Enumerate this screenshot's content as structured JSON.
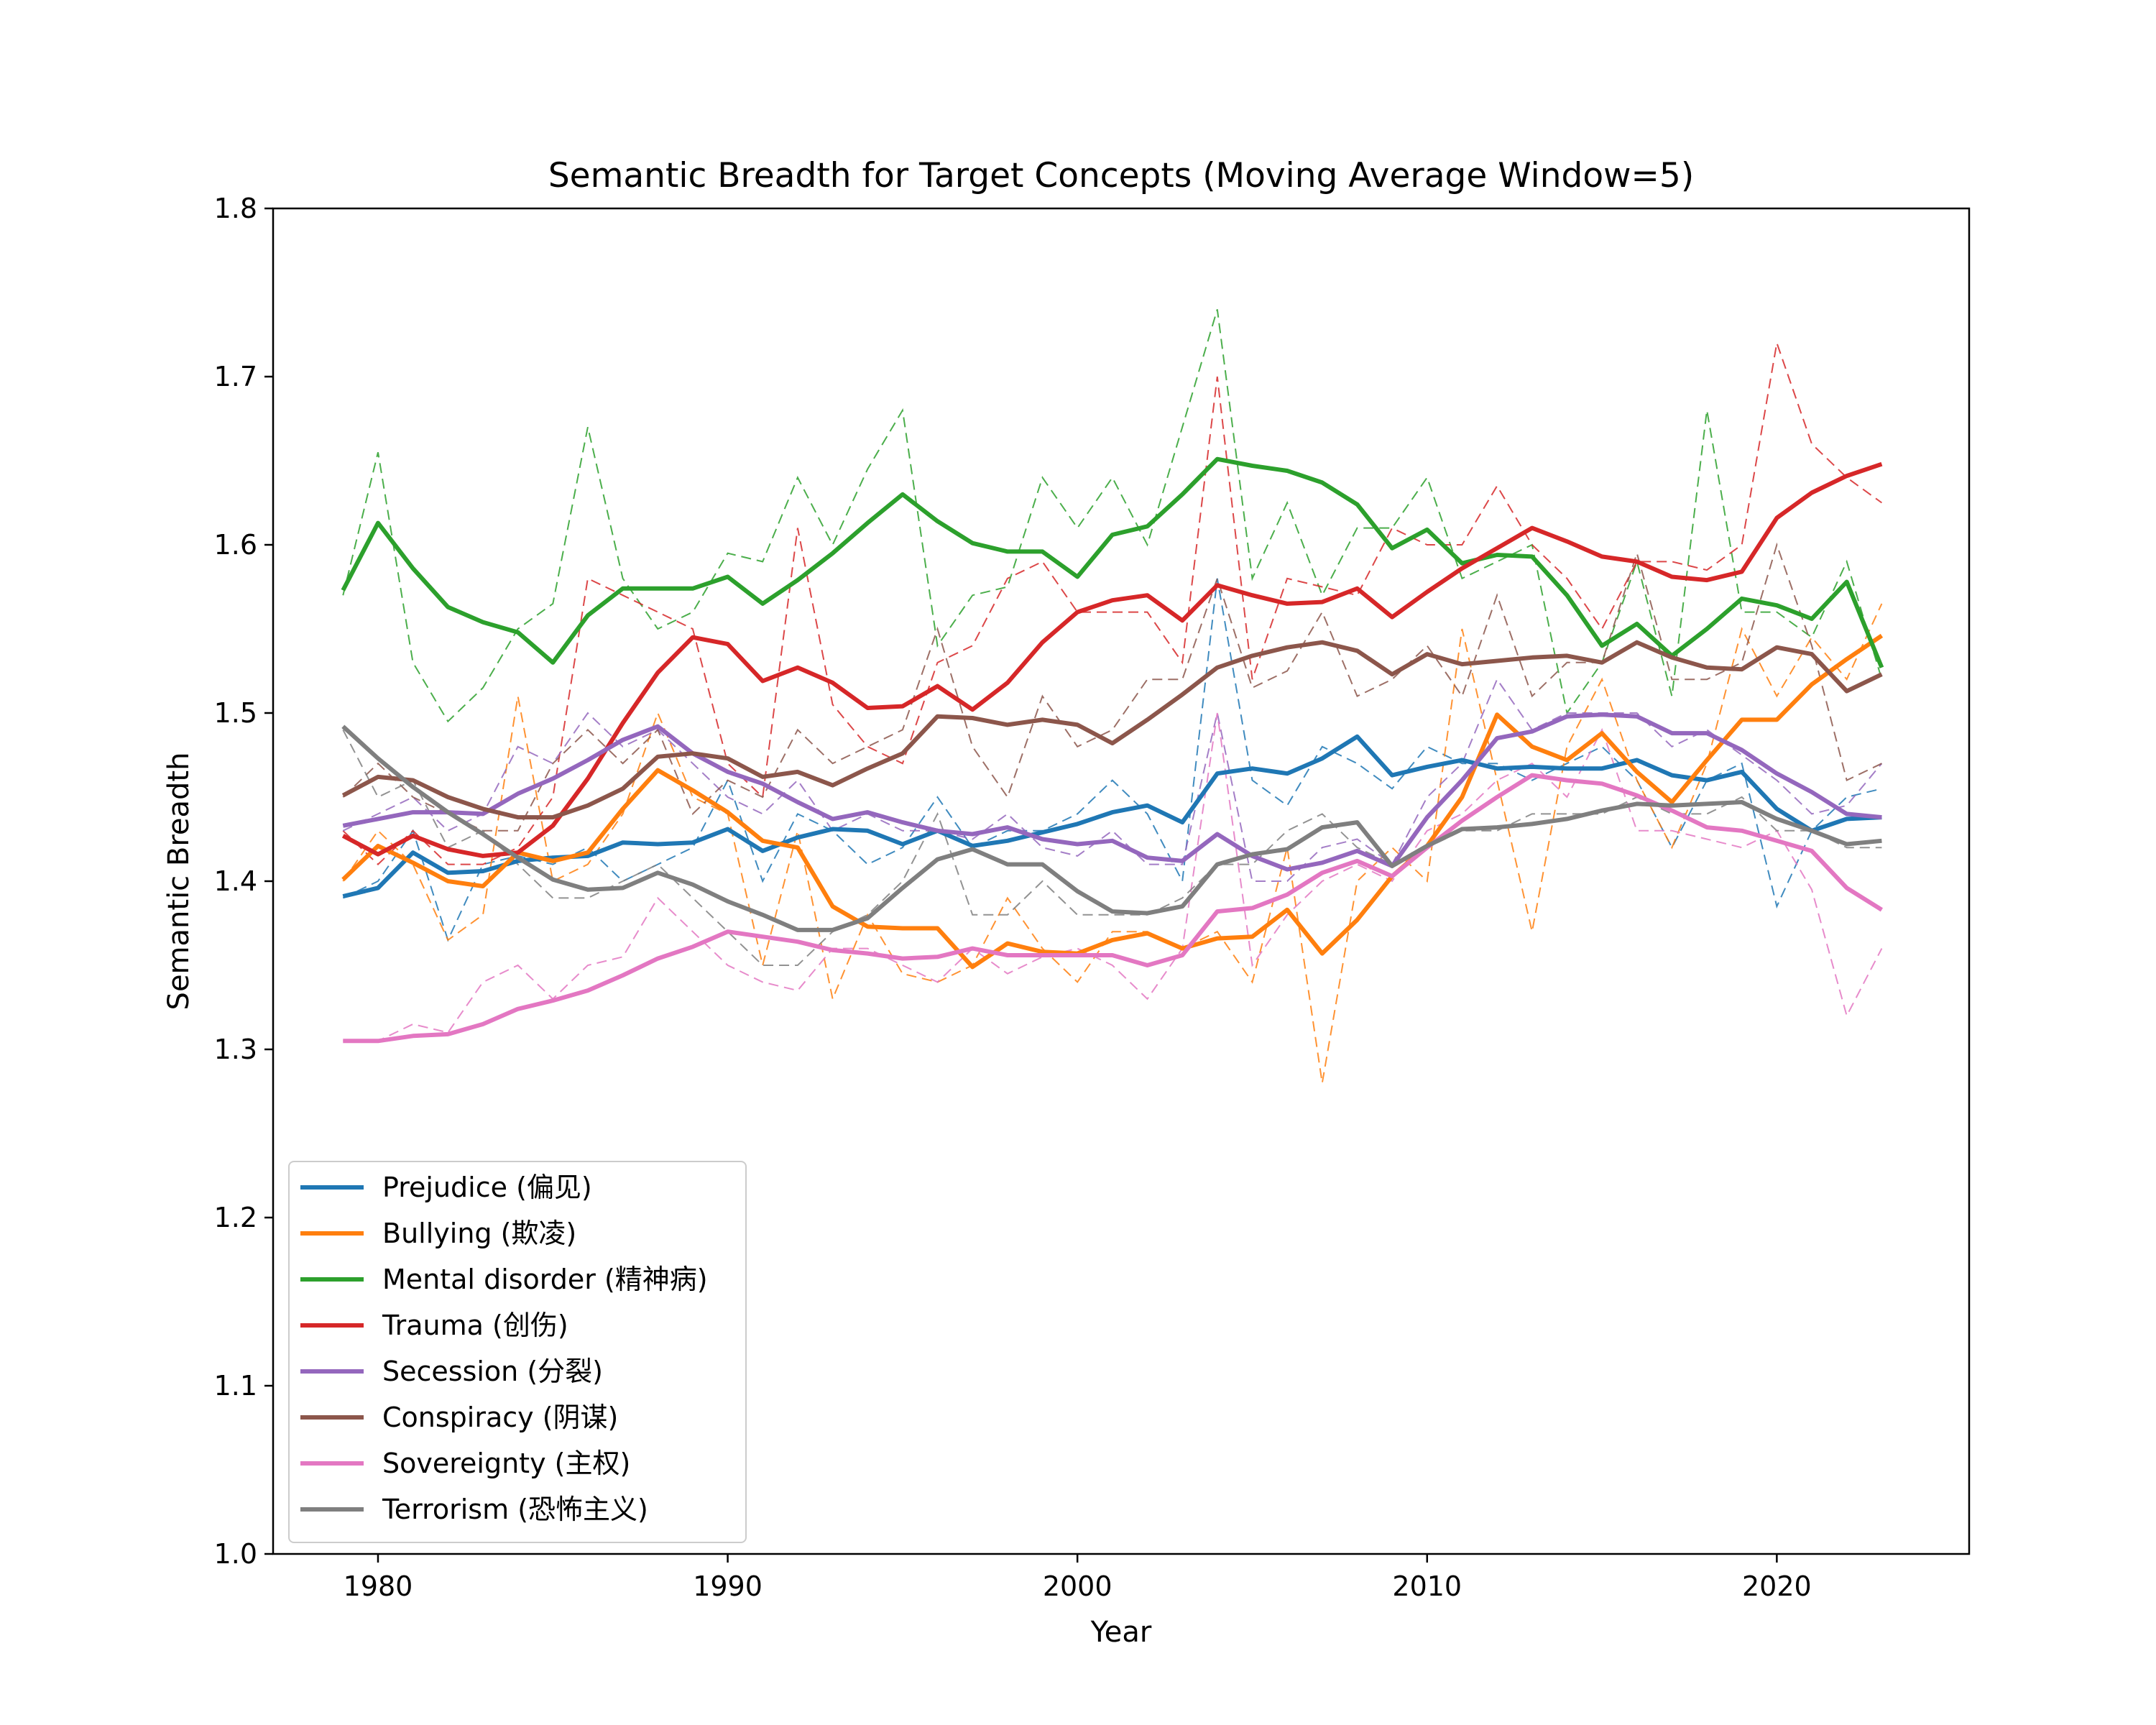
{
  "chart_data": {
    "type": "line",
    "title": "Semantic Breadth for Target Concepts (Moving Average Window=5)",
    "xlabel": "Year",
    "ylabel": "Semantic Breadth",
    "xlim": [
      1977,
      2025.5
    ],
    "ylim": [
      1.0,
      1.8
    ],
    "xticks": [
      1980,
      1990,
      2000,
      2010,
      2020
    ],
    "yticks": [
      1.0,
      1.1,
      1.2,
      1.3,
      1.4,
      1.5,
      1.6,
      1.7,
      1.8
    ],
    "ytick_labels": [
      "1.0",
      "1.1",
      "1.2",
      "1.3",
      "1.4",
      "1.5",
      "1.6",
      "1.7",
      "1.8"
    ],
    "legend_position": "lower-left",
    "grid": false,
    "x_start": 1979,
    "series": [
      {
        "name": "Prejudice (偏见)",
        "color": "#1f77b4",
        "moving_average": [
          1.391,
          1.396,
          1.417,
          1.405,
          1.406,
          1.412,
          1.414,
          1.415,
          1.423,
          1.422,
          1.423,
          1.431,
          1.418,
          1.426,
          1.431,
          1.43,
          1.422,
          1.43,
          1.421,
          1.424,
          1.429,
          1.434,
          1.441,
          1.445,
          1.435,
          1.464,
          1.467,
          1.464,
          1.473,
          1.486,
          1.463,
          1.468,
          1.472,
          1.467,
          1.468,
          1.467,
          1.467,
          1.472,
          1.463,
          1.46,
          1.465,
          1.443,
          1.43,
          1.437,
          1.438
        ],
        "raw": [
          1.39,
          1.4,
          1.43,
          1.365,
          1.41,
          1.415,
          1.41,
          1.42,
          1.4,
          1.41,
          1.42,
          1.46,
          1.4,
          1.44,
          1.43,
          1.41,
          1.42,
          1.45,
          1.42,
          1.43,
          1.43,
          1.44,
          1.46,
          1.44,
          1.4,
          1.58,
          1.46,
          1.445,
          1.48,
          1.47,
          1.455,
          1.48,
          1.47,
          1.47,
          1.46,
          1.47,
          1.48,
          1.46,
          1.42,
          1.46,
          1.47,
          1.385,
          1.43,
          1.45,
          1.455
        ]
      },
      {
        "name": "Bullying (欺凌)",
        "color": "#ff7f0e",
        "moving_average": [
          1.401,
          1.421,
          1.411,
          1.4,
          1.397,
          1.417,
          1.412,
          1.417,
          1.443,
          1.466,
          1.454,
          1.441,
          1.424,
          1.42,
          1.385,
          1.373,
          1.372,
          1.372,
          1.349,
          1.363,
          1.358,
          1.357,
          1.365,
          1.369,
          1.36,
          1.366,
          1.367,
          1.383,
          1.357,
          1.377,
          1.403,
          1.421,
          1.45,
          1.499,
          1.48,
          1.472,
          1.488,
          1.465,
          1.447,
          1.472,
          1.496,
          1.496,
          1.517,
          1.532,
          1.546
        ],
        "raw": [
          1.4,
          1.43,
          1.41,
          1.365,
          1.38,
          1.51,
          1.4,
          1.41,
          1.44,
          1.5,
          1.45,
          1.44,
          1.35,
          1.43,
          1.33,
          1.38,
          1.345,
          1.34,
          1.35,
          1.39,
          1.36,
          1.34,
          1.37,
          1.37,
          1.36,
          1.37,
          1.34,
          1.42,
          1.28,
          1.4,
          1.42,
          1.4,
          1.55,
          1.46,
          1.37,
          1.48,
          1.52,
          1.46,
          1.42,
          1.47,
          1.55,
          1.51,
          1.545,
          1.52,
          1.565
        ]
      },
      {
        "name": "Mental disorder (精神病)",
        "color": "#2ca02c",
        "moving_average": [
          1.573,
          1.613,
          1.586,
          1.563,
          1.554,
          1.548,
          1.53,
          1.558,
          1.574,
          1.574,
          1.574,
          1.581,
          1.565,
          1.579,
          1.595,
          1.613,
          1.63,
          1.614,
          1.601,
          1.596,
          1.596,
          1.581,
          1.606,
          1.611,
          1.63,
          1.651,
          1.647,
          1.644,
          1.637,
          1.624,
          1.598,
          1.609,
          1.589,
          1.594,
          1.593,
          1.57,
          1.54,
          1.553,
          1.534,
          1.55,
          1.568,
          1.564,
          1.556,
          1.578,
          1.527
        ],
        "raw": [
          1.57,
          1.655,
          1.53,
          1.495,
          1.515,
          1.55,
          1.565,
          1.67,
          1.58,
          1.55,
          1.56,
          1.595,
          1.59,
          1.64,
          1.6,
          1.645,
          1.68,
          1.54,
          1.57,
          1.575,
          1.64,
          1.61,
          1.64,
          1.6,
          1.67,
          1.74,
          1.58,
          1.625,
          1.57,
          1.61,
          1.61,
          1.64,
          1.58,
          1.59,
          1.6,
          1.5,
          1.53,
          1.59,
          1.51,
          1.68,
          1.56,
          1.56,
          1.545,
          1.59,
          1.52
        ]
      },
      {
        "name": "Trauma (创伤)",
        "color": "#d62728",
        "moving_average": [
          1.427,
          1.416,
          1.427,
          1.419,
          1.415,
          1.417,
          1.433,
          1.461,
          1.494,
          1.524,
          1.545,
          1.541,
          1.519,
          1.527,
          1.518,
          1.503,
          1.504,
          1.516,
          1.502,
          1.518,
          1.542,
          1.56,
          1.567,
          1.57,
          1.555,
          1.576,
          1.57,
          1.565,
          1.566,
          1.574,
          1.557,
          1.572,
          1.586,
          1.598,
          1.61,
          1.602,
          1.593,
          1.59,
          1.581,
          1.579,
          1.584,
          1.616,
          1.631,
          1.641,
          1.648
        ],
        "raw": [
          1.43,
          1.41,
          1.43,
          1.41,
          1.41,
          1.42,
          1.45,
          1.58,
          1.57,
          1.56,
          1.55,
          1.47,
          1.45,
          1.61,
          1.505,
          1.48,
          1.47,
          1.53,
          1.54,
          1.58,
          1.59,
          1.56,
          1.56,
          1.56,
          1.53,
          1.7,
          1.52,
          1.58,
          1.575,
          1.57,
          1.61,
          1.6,
          1.6,
          1.635,
          1.6,
          1.58,
          1.55,
          1.59,
          1.59,
          1.585,
          1.6,
          1.72,
          1.66,
          1.64,
          1.625
        ]
      },
      {
        "name": "Secession (分裂)",
        "color": "#9467bd",
        "moving_average": [
          1.433,
          1.437,
          1.441,
          1.441,
          1.44,
          1.452,
          1.461,
          1.472,
          1.484,
          1.492,
          1.476,
          1.465,
          1.458,
          1.447,
          1.437,
          1.441,
          1.435,
          1.43,
          1.428,
          1.432,
          1.425,
          1.422,
          1.424,
          1.414,
          1.412,
          1.428,
          1.415,
          1.407,
          1.411,
          1.418,
          1.409,
          1.438,
          1.46,
          1.485,
          1.489,
          1.498,
          1.499,
          1.498,
          1.488,
          1.488,
          1.478,
          1.464,
          1.453,
          1.44,
          1.438
        ],
        "raw": [
          1.43,
          1.44,
          1.45,
          1.43,
          1.44,
          1.48,
          1.47,
          1.5,
          1.48,
          1.49,
          1.47,
          1.45,
          1.44,
          1.46,
          1.43,
          1.44,
          1.43,
          1.43,
          1.425,
          1.44,
          1.42,
          1.415,
          1.43,
          1.41,
          1.41,
          1.5,
          1.4,
          1.4,
          1.42,
          1.425,
          1.41,
          1.45,
          1.47,
          1.52,
          1.49,
          1.5,
          1.5,
          1.5,
          1.48,
          1.49,
          1.475,
          1.46,
          1.44,
          1.445,
          1.47
        ]
      },
      {
        "name": "Conspiracy (阴谋)",
        "color": "#8c564b",
        "moving_average": [
          1.451,
          1.462,
          1.46,
          1.45,
          1.443,
          1.438,
          1.438,
          1.445,
          1.455,
          1.474,
          1.476,
          1.473,
          1.462,
          1.465,
          1.457,
          1.467,
          1.476,
          1.498,
          1.497,
          1.493,
          1.496,
          1.493,
          1.482,
          1.496,
          1.511,
          1.527,
          1.534,
          1.539,
          1.542,
          1.537,
          1.523,
          1.535,
          1.529,
          1.531,
          1.533,
          1.534,
          1.53,
          1.542,
          1.533,
          1.527,
          1.526,
          1.539,
          1.535,
          1.513,
          1.523
        ],
        "raw": [
          1.45,
          1.47,
          1.45,
          1.44,
          1.43,
          1.43,
          1.47,
          1.49,
          1.47,
          1.49,
          1.44,
          1.46,
          1.45,
          1.49,
          1.47,
          1.48,
          1.49,
          1.55,
          1.48,
          1.45,
          1.51,
          1.48,
          1.49,
          1.52,
          1.52,
          1.58,
          1.515,
          1.525,
          1.56,
          1.51,
          1.52,
          1.54,
          1.51,
          1.57,
          1.51,
          1.53,
          1.53,
          1.595,
          1.52,
          1.52,
          1.53,
          1.6,
          1.54,
          1.46,
          1.47
        ]
      },
      {
        "name": "Sovereignty (主权)",
        "color": "#e377c2",
        "moving_average": [
          1.305,
          1.305,
          1.308,
          1.309,
          1.315,
          1.324,
          1.329,
          1.335,
          1.344,
          1.354,
          1.361,
          1.37,
          1.367,
          1.364,
          1.359,
          1.357,
          1.354,
          1.355,
          1.36,
          1.356,
          1.356,
          1.356,
          1.356,
          1.35,
          1.356,
          1.382,
          1.384,
          1.392,
          1.405,
          1.412,
          1.403,
          1.42,
          1.436,
          1.45,
          1.463,
          1.46,
          1.458,
          1.451,
          1.442,
          1.432,
          1.43,
          1.424,
          1.418,
          1.396,
          1.383
        ],
        "raw": [
          1.305,
          1.305,
          1.315,
          1.31,
          1.34,
          1.35,
          1.33,
          1.35,
          1.355,
          1.39,
          1.37,
          1.35,
          1.34,
          1.335,
          1.36,
          1.36,
          1.35,
          1.34,
          1.36,
          1.345,
          1.355,
          1.36,
          1.35,
          1.33,
          1.36,
          1.5,
          1.35,
          1.38,
          1.4,
          1.41,
          1.4,
          1.43,
          1.44,
          1.46,
          1.47,
          1.45,
          1.49,
          1.43,
          1.43,
          1.425,
          1.42,
          1.43,
          1.395,
          1.32,
          1.36
        ]
      },
      {
        "name": "Terrorism (恐怖主义)",
        "color": "#7f7f7f",
        "moving_average": [
          1.492,
          1.473,
          1.456,
          1.441,
          1.428,
          1.414,
          1.401,
          1.395,
          1.396,
          1.405,
          1.398,
          1.388,
          1.38,
          1.371,
          1.371,
          1.378,
          1.396,
          1.413,
          1.419,
          1.41,
          1.41,
          1.394,
          1.382,
          1.381,
          1.385,
          1.41,
          1.416,
          1.419,
          1.432,
          1.435,
          1.409,
          1.421,
          1.431,
          1.432,
          1.434,
          1.437,
          1.442,
          1.446,
          1.445,
          1.446,
          1.447,
          1.437,
          1.43,
          1.422,
          1.424
        ],
        "raw": [
          1.49,
          1.45,
          1.46,
          1.42,
          1.43,
          1.41,
          1.39,
          1.39,
          1.4,
          1.41,
          1.39,
          1.37,
          1.35,
          1.35,
          1.37,
          1.38,
          1.4,
          1.44,
          1.38,
          1.38,
          1.4,
          1.38,
          1.38,
          1.38,
          1.39,
          1.41,
          1.41,
          1.43,
          1.44,
          1.42,
          1.41,
          1.42,
          1.43,
          1.43,
          1.44,
          1.44,
          1.44,
          1.45,
          1.44,
          1.44,
          1.45,
          1.43,
          1.43,
          1.42,
          1.42
        ]
      }
    ]
  }
}
